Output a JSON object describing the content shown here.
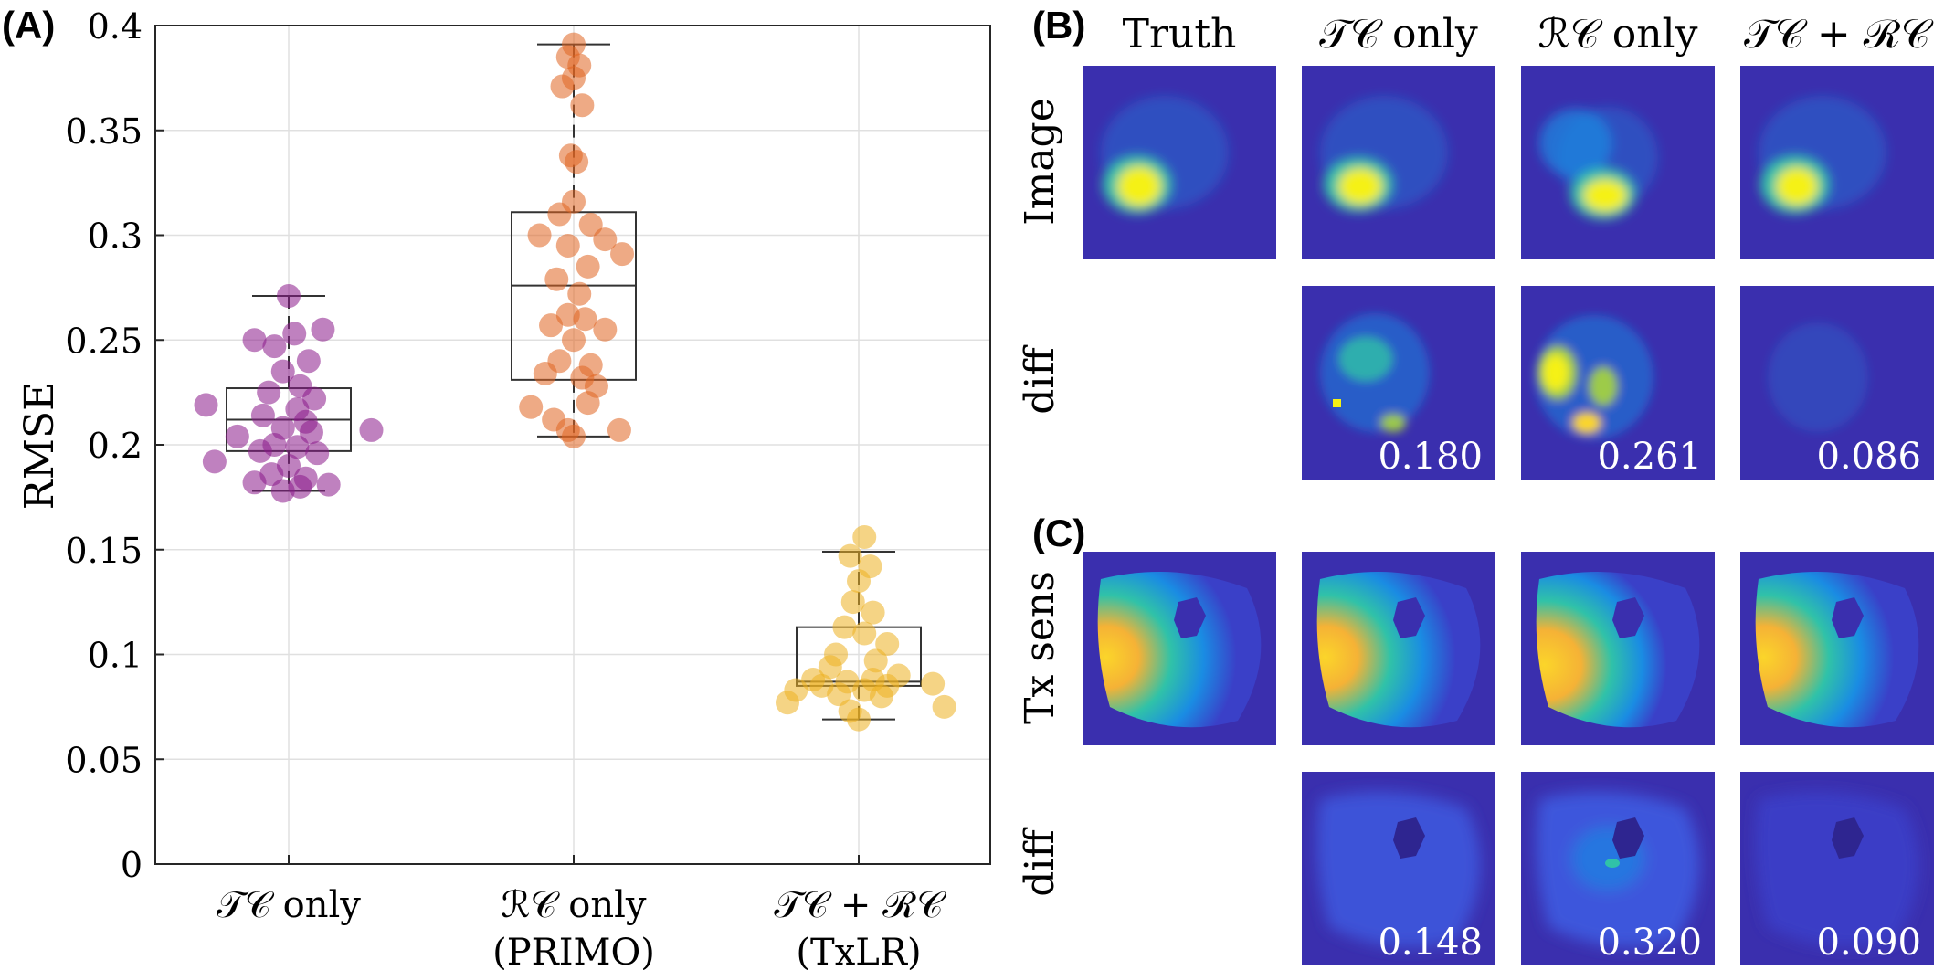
{
  "panel_labels": {
    "A": "(A)",
    "B": "(B)",
    "C": "(C)"
  },
  "chart_data": {
    "type": "scatter",
    "ylabel": "RMSE",
    "xlabel": "",
    "ylim": [
      0,
      0.4
    ],
    "yticks": [
      "0",
      "0.05",
      "0.1",
      "0.15",
      "0.2",
      "0.25",
      "0.3",
      "0.35",
      "0.4"
    ],
    "grid": true,
    "categories": [
      {
        "line1": "𝒯𝒞 only",
        "line2": ""
      },
      {
        "line1": "ℛ𝒞 only",
        "line2": "(PRIMO)"
      },
      {
        "line1": "𝒯𝒞 + ℛ𝒞",
        "line2": "(TxLR)"
      }
    ],
    "series": [
      {
        "color": "#8B1A8B",
        "box": {
          "whisker_low": 0.178,
          "q1": 0.197,
          "median": 0.212,
          "q3": 0.227,
          "whisker_high": 0.271
        },
        "points": [
          {
            "x": 0.0,
            "y": 0.271
          },
          {
            "x": 0.12,
            "y": 0.255
          },
          {
            "x": -0.12,
            "y": 0.25
          },
          {
            "x": 0.02,
            "y": 0.253
          },
          {
            "x": -0.05,
            "y": 0.247
          },
          {
            "x": 0.07,
            "y": 0.24
          },
          {
            "x": -0.02,
            "y": 0.235
          },
          {
            "x": 0.04,
            "y": 0.228
          },
          {
            "x": -0.07,
            "y": 0.225
          },
          {
            "x": 0.09,
            "y": 0.222
          },
          {
            "x": -0.29,
            "y": 0.219
          },
          {
            "x": 0.03,
            "y": 0.217
          },
          {
            "x": -0.09,
            "y": 0.214
          },
          {
            "x": 0.06,
            "y": 0.211
          },
          {
            "x": -0.02,
            "y": 0.208
          },
          {
            "x": 0.08,
            "y": 0.206
          },
          {
            "x": -0.18,
            "y": 0.204
          },
          {
            "x": 0.29,
            "y": 0.207
          },
          {
            "x": -0.05,
            "y": 0.2
          },
          {
            "x": 0.03,
            "y": 0.199
          },
          {
            "x": -0.1,
            "y": 0.197
          },
          {
            "x": 0.1,
            "y": 0.196
          },
          {
            "x": -0.26,
            "y": 0.192
          },
          {
            "x": 0.0,
            "y": 0.19
          },
          {
            "x": -0.06,
            "y": 0.186
          },
          {
            "x": 0.06,
            "y": 0.184
          },
          {
            "x": -0.12,
            "y": 0.182
          },
          {
            "x": 0.14,
            "y": 0.181
          },
          {
            "x": -0.02,
            "y": 0.178
          },
          {
            "x": 0.04,
            "y": 0.18
          }
        ]
      },
      {
        "color": "#E06520",
        "box": {
          "whisker_low": 0.204,
          "q1": 0.231,
          "median": 0.276,
          "q3": 0.311,
          "whisker_high": 0.391
        },
        "points": [
          {
            "x": 0.0,
            "y": 0.391
          },
          {
            "x": -0.02,
            "y": 0.385
          },
          {
            "x": 0.02,
            "y": 0.381
          },
          {
            "x": 0.0,
            "y": 0.375
          },
          {
            "x": -0.04,
            "y": 0.371
          },
          {
            "x": 0.03,
            "y": 0.362
          },
          {
            "x": -0.01,
            "y": 0.338
          },
          {
            "x": 0.01,
            "y": 0.335
          },
          {
            "x": 0.0,
            "y": 0.316
          },
          {
            "x": -0.05,
            "y": 0.31
          },
          {
            "x": 0.06,
            "y": 0.305
          },
          {
            "x": -0.12,
            "y": 0.3
          },
          {
            "x": 0.11,
            "y": 0.298
          },
          {
            "x": -0.02,
            "y": 0.295
          },
          {
            "x": 0.17,
            "y": 0.291
          },
          {
            "x": 0.05,
            "y": 0.285
          },
          {
            "x": -0.06,
            "y": 0.279
          },
          {
            "x": 0.02,
            "y": 0.272
          },
          {
            "x": -0.02,
            "y": 0.262
          },
          {
            "x": 0.04,
            "y": 0.26
          },
          {
            "x": -0.08,
            "y": 0.257
          },
          {
            "x": 0.11,
            "y": 0.255
          },
          {
            "x": 0.0,
            "y": 0.25
          },
          {
            "x": -0.05,
            "y": 0.24
          },
          {
            "x": 0.06,
            "y": 0.238
          },
          {
            "x": -0.1,
            "y": 0.234
          },
          {
            "x": 0.03,
            "y": 0.232
          },
          {
            "x": 0.08,
            "y": 0.228
          },
          {
            "x": -0.15,
            "y": 0.218
          },
          {
            "x": 0.05,
            "y": 0.22
          },
          {
            "x": -0.07,
            "y": 0.212
          },
          {
            "x": 0.16,
            "y": 0.207
          },
          {
            "x": -0.02,
            "y": 0.207
          },
          {
            "x": 0.0,
            "y": 0.204
          }
        ]
      },
      {
        "color": "#EDB120",
        "box": {
          "whisker_low": 0.069,
          "q1": 0.085,
          "median": 0.087,
          "q3": 0.113,
          "whisker_high": 0.149
        },
        "points": [
          {
            "x": 0.02,
            "y": 0.156
          },
          {
            "x": -0.03,
            "y": 0.147
          },
          {
            "x": 0.04,
            "y": 0.142
          },
          {
            "x": 0.0,
            "y": 0.135
          },
          {
            "x": -0.02,
            "y": 0.125
          },
          {
            "x": 0.05,
            "y": 0.12
          },
          {
            "x": -0.05,
            "y": 0.113
          },
          {
            "x": 0.02,
            "y": 0.11
          },
          {
            "x": 0.1,
            "y": 0.105
          },
          {
            "x": -0.08,
            "y": 0.1
          },
          {
            "x": 0.06,
            "y": 0.097
          },
          {
            "x": -0.1,
            "y": 0.094
          },
          {
            "x": 0.14,
            "y": 0.09
          },
          {
            "x": -0.16,
            "y": 0.088
          },
          {
            "x": 0.05,
            "y": 0.088
          },
          {
            "x": -0.04,
            "y": 0.087
          },
          {
            "x": 0.1,
            "y": 0.085
          },
          {
            "x": -0.13,
            "y": 0.085
          },
          {
            "x": 0.26,
            "y": 0.086
          },
          {
            "x": -0.22,
            "y": 0.083
          },
          {
            "x": 0.02,
            "y": 0.083
          },
          {
            "x": -0.07,
            "y": 0.081
          },
          {
            "x": 0.08,
            "y": 0.08
          },
          {
            "x": -0.25,
            "y": 0.077
          },
          {
            "x": 0.3,
            "y": 0.075
          },
          {
            "x": -0.03,
            "y": 0.073
          },
          {
            "x": 0.0,
            "y": 0.069
          }
        ]
      }
    ]
  },
  "grid_panel": {
    "columns": [
      "Truth",
      "𝒯𝒞 only",
      "ℛ𝒞 only",
      "𝒯𝒞 + ℛ𝒞"
    ],
    "rows": {
      "image": "Image",
      "diff1": "diff",
      "txsens": "Tx sens",
      "diff2": "diff"
    },
    "image_diff_values": [
      "0.180",
      "0.261",
      "0.086"
    ],
    "txsens_diff_values": [
      "0.148",
      "0.320",
      "0.090"
    ],
    "colormap": [
      "#3a2fae",
      "#1a8ce3",
      "#30c2a8",
      "#9dcb4a",
      "#fbd52a",
      "#f5f114"
    ]
  }
}
